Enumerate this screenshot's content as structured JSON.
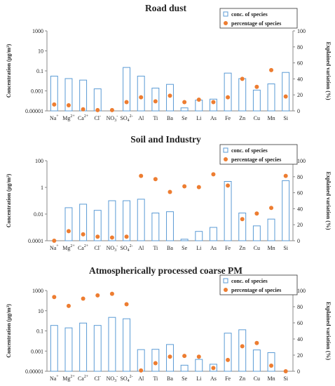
{
  "chart_data": [
    {
      "type": "bar",
      "title": "Road dust",
      "categories": [
        {
          "base": "Na",
          "sup": "+"
        },
        {
          "base": "Mg",
          "sup": "2+"
        },
        {
          "base": "Ca",
          "sup": "2+"
        },
        {
          "base": "Cl",
          "sup": "-"
        },
        {
          "base": "NO",
          "sub": "3",
          "sup": "-"
        },
        {
          "base": "SO",
          "sub": "4",
          "sup": "2-"
        },
        {
          "base": "Al"
        },
        {
          "base": "Ti"
        },
        {
          "base": "Ba"
        },
        {
          "base": "Se"
        },
        {
          "base": "Li"
        },
        {
          "base": "As"
        },
        {
          "base": "Fe"
        },
        {
          "base": "Zn"
        },
        {
          "base": "Cu"
        },
        {
          "base": "Mn"
        },
        {
          "base": "Si"
        }
      ],
      "ylabel": "Concentration (µg/m³)",
      "y2label": "Explained variation (%)",
      "ylim": [
        1e-05,
        1000
      ],
      "y_scale": "log",
      "yticks": [
        1e-05,
        0.001,
        0.1,
        10,
        1000
      ],
      "ytick_labels": [
        "0.00001",
        "0.001",
        "0.1",
        "10",
        "1000"
      ],
      "y2lim": [
        0,
        100
      ],
      "y2ticks": [
        0,
        20,
        40,
        60,
        80,
        100
      ],
      "legend_position": "top-right",
      "series": [
        {
          "name": "conc. of species",
          "kind": "bar",
          "axis": "left",
          "color": "#5b9bd5",
          "values": [
            0.03,
            0.017,
            0.012,
            0.0016,
            1e-05,
            0.22,
            0.03,
            0.0019,
            0.0045,
            2e-05,
            0.00012,
            0.00015,
            0.06,
            0.017,
            0.0012,
            0.005,
            0.07
          ]
        },
        {
          "name": "percentage of species",
          "kind": "marker",
          "axis": "right",
          "color": "#ed7d31",
          "values": [
            8,
            7,
            2,
            1,
            1,
            11,
            17,
            12,
            19,
            11,
            14,
            11,
            17,
            40,
            30,
            51,
            18
          ]
        }
      ]
    },
    {
      "type": "bar",
      "title": "Soil and Industry",
      "categories": [
        {
          "base": "Na",
          "sup": "+"
        },
        {
          "base": "Mg",
          "sup": "2+"
        },
        {
          "base": "Ca",
          "sup": "2+"
        },
        {
          "base": "Cl",
          "sup": "-"
        },
        {
          "base": "NO",
          "sub": "3",
          "sup": "-"
        },
        {
          "base": "SO",
          "sub": "4",
          "sup": "2-"
        },
        {
          "base": "Al"
        },
        {
          "base": "Ti"
        },
        {
          "base": "Ba"
        },
        {
          "base": "Se"
        },
        {
          "base": "Li"
        },
        {
          "base": "As"
        },
        {
          "base": "Fe"
        },
        {
          "base": "Zn"
        },
        {
          "base": "Cu"
        },
        {
          "base": "Mn"
        },
        {
          "base": "Si"
        }
      ],
      "ylabel": "Concentration (µg/m³)",
      "y2label": "Explained variation (%)",
      "ylim": [
        0.0001,
        100
      ],
      "y_scale": "log",
      "yticks": [
        0.0001,
        0.01,
        1,
        100
      ],
      "ytick_labels": [
        "0.0001",
        "0.01",
        "1",
        "100"
      ],
      "y2lim": [
        0,
        100
      ],
      "y2ticks": [
        0,
        20,
        40,
        60,
        80,
        100
      ],
      "legend_position": "top-right",
      "series": [
        {
          "name": "conc. of species",
          "kind": "bar",
          "axis": "left",
          "color": "#5b9bd5",
          "values": [
            0.0001,
            0.03,
            0.055,
            0.019,
            0.1,
            0.1,
            0.13,
            0.012,
            0.015,
            0.00013,
            0.0005,
            0.001,
            2.8,
            0.012,
            0.0013,
            0.0042,
            3.2
          ]
        },
        {
          "name": "percentage of species",
          "kind": "marker",
          "axis": "right",
          "color": "#ed7d31",
          "values": [
            0,
            12,
            8,
            5,
            4,
            5,
            81,
            77,
            61,
            68,
            67,
            83,
            69,
            27,
            34,
            41,
            81
          ]
        }
      ]
    },
    {
      "type": "bar",
      "title": "Atmospherically processed coarse PM",
      "categories": [
        {
          "base": "Na",
          "sup": "+"
        },
        {
          "base": "Mg",
          "sup": "2+"
        },
        {
          "base": "Ca",
          "sup": "2+"
        },
        {
          "base": "Cl",
          "sup": "-"
        },
        {
          "base": "NO",
          "sub": "3",
          "sup": "-"
        },
        {
          "base": "SO",
          "sub": "4",
          "sup": "2-"
        },
        {
          "base": "Al"
        },
        {
          "base": "Ti"
        },
        {
          "base": "Ba"
        },
        {
          "base": "Se"
        },
        {
          "base": "Li"
        },
        {
          "base": "As"
        },
        {
          "base": "Fe"
        },
        {
          "base": "Zn"
        },
        {
          "base": "Cu"
        },
        {
          "base": "Mn"
        },
        {
          "base": "Si"
        }
      ],
      "ylabel": "Concentration (µg/m³)",
      "y2label": "Explained variation (%)",
      "ylim": [
        1e-05,
        1000
      ],
      "y_scale": "log",
      "yticks": [
        1e-05,
        0.001,
        0.1,
        10,
        1000
      ],
      "ytick_labels": [
        "0.00001",
        "0.001",
        "0.1",
        "10",
        "1000"
      ],
      "y2lim": [
        0,
        100
      ],
      "y2ticks": [
        0,
        20,
        40,
        60,
        80,
        100
      ],
      "legend_position": "top-right",
      "series": [
        {
          "name": "conc. of species",
          "kind": "bar",
          "axis": "left",
          "color": "#5b9bd5",
          "values": [
            0.35,
            0.2,
            0.6,
            0.35,
            2.2,
            1.6,
            0.0014,
            0.0015,
            0.0045,
            4e-05,
            0.00015,
            5e-05,
            0.06,
            0.13,
            0.0013,
            0.0007,
            1e-05
          ]
        },
        {
          "name": "percentage of species",
          "kind": "marker",
          "axis": "right",
          "color": "#ed7d31",
          "values": [
            92,
            81,
            90,
            94,
            96,
            83,
            1,
            10,
            18,
            19,
            18,
            4,
            14,
            31,
            35,
            7,
            0
          ]
        }
      ]
    }
  ]
}
